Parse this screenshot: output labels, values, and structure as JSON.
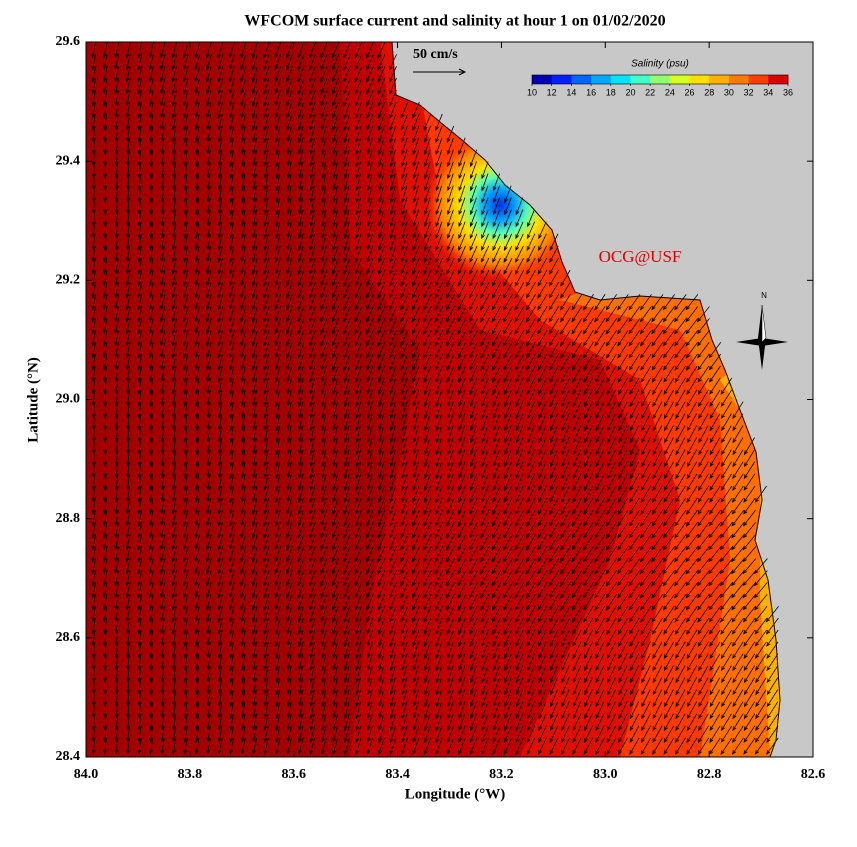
{
  "title": "WFCOM surface current and salinity at hour 1 on 01/02/2020",
  "x_axis": {
    "label": "Longitude (°W)",
    "lim": [
      84.0,
      82.6
    ],
    "ticks": [
      {
        "value": 84.0,
        "label": "84.0"
      },
      {
        "value": 83.8,
        "label": "83.8"
      },
      {
        "value": 83.6,
        "label": "83.6"
      },
      {
        "value": 83.4,
        "label": "83.4"
      },
      {
        "value": 83.2,
        "label": "83.2"
      },
      {
        "value": 83.0,
        "label": "83.0"
      },
      {
        "value": 82.8,
        "label": "82.8"
      },
      {
        "value": 82.6,
        "label": "82.6"
      }
    ]
  },
  "y_axis": {
    "label": "Latitude (°N)",
    "lim": [
      28.4,
      29.6
    ],
    "ticks": [
      {
        "value": 28.4,
        "label": "28.4"
      },
      {
        "value": 28.6,
        "label": "28.6"
      },
      {
        "value": 28.8,
        "label": "28.8"
      },
      {
        "value": 29.0,
        "label": "29.0"
      },
      {
        "value": 29.2,
        "label": "29.2"
      },
      {
        "value": 29.4,
        "label": "29.4"
      },
      {
        "value": 29.6,
        "label": "29.6"
      }
    ]
  },
  "scale_arrow": "50 cm/s",
  "colorbar": {
    "title": "Salinity (psu)",
    "lim": [
      10,
      36
    ],
    "ticks": [
      10,
      12,
      14,
      16,
      18,
      20,
      22,
      24,
      26,
      28,
      30,
      32,
      34,
      36
    ],
    "colors": [
      "#0000b4",
      "#0020ff",
      "#0064ff",
      "#00a8ff",
      "#00e4ff",
      "#40ffc8",
      "#90ff70",
      "#d8ff20",
      "#ffe000",
      "#ffb000",
      "#ff7800",
      "#ff3c00",
      "#dc0000"
    ]
  },
  "watermark": "OCG@USF",
  "compass": "N"
}
